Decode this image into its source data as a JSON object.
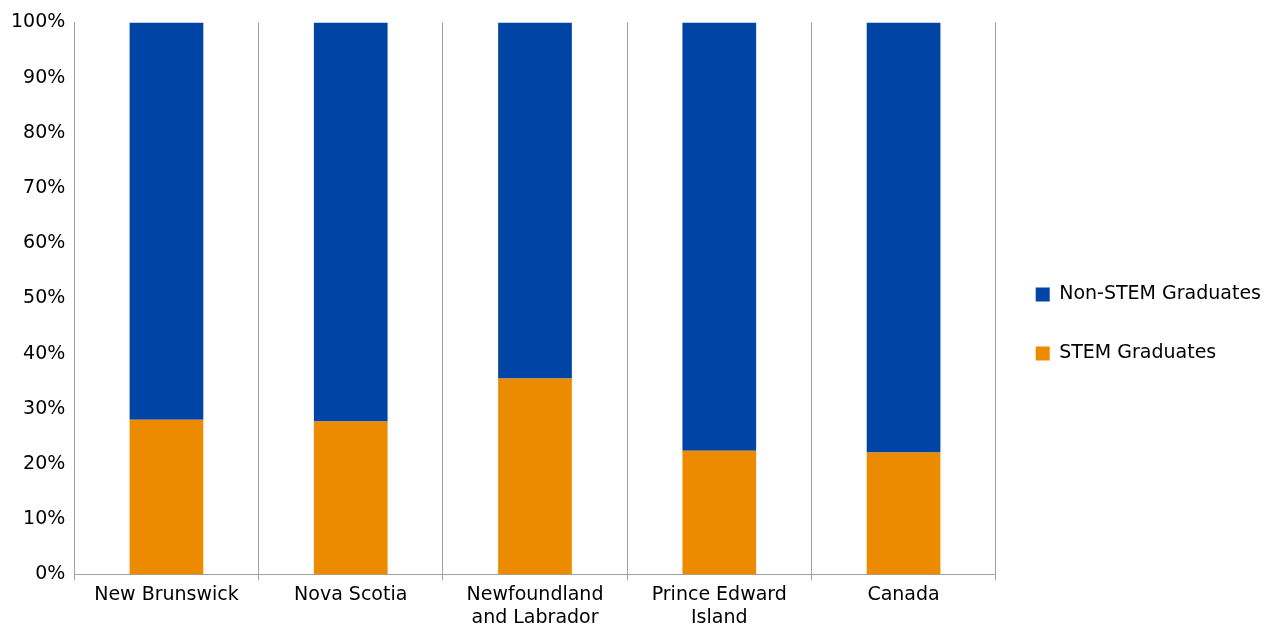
{
  "chart_data": {
    "type": "bar",
    "stacked": true,
    "categories": [
      "New Brunswick",
      "Nova Scotia",
      "Newfoundland and Labrador",
      "Prince Edward Island",
      "Canada"
    ],
    "series": [
      {
        "name": "STEM Graduates",
        "color": "#ec8a00",
        "values": [
          28,
          27.7,
          35.5,
          22.4,
          22.1
        ]
      },
      {
        "name": "Non-STEM Graduates",
        "color": "#0045a6",
        "values": [
          72,
          72.3,
          64.5,
          77.6,
          77.9
        ]
      }
    ],
    "ylim": [
      0,
      100
    ],
    "yticks": [
      {
        "value": 0,
        "label": "0%"
      },
      {
        "value": 10,
        "label": "10%"
      },
      {
        "value": 20,
        "label": "20%"
      },
      {
        "value": 30,
        "label": "30%"
      },
      {
        "value": 40,
        "label": "40%"
      },
      {
        "value": 50,
        "label": "50%"
      },
      {
        "value": 60,
        "label": "60%"
      },
      {
        "value": 70,
        "label": "70%"
      },
      {
        "value": 80,
        "label": "80%"
      },
      {
        "value": 90,
        "label": "90%"
      },
      {
        "value": 100,
        "label": "100%"
      }
    ],
    "grid": "x",
    "legend": "right"
  }
}
